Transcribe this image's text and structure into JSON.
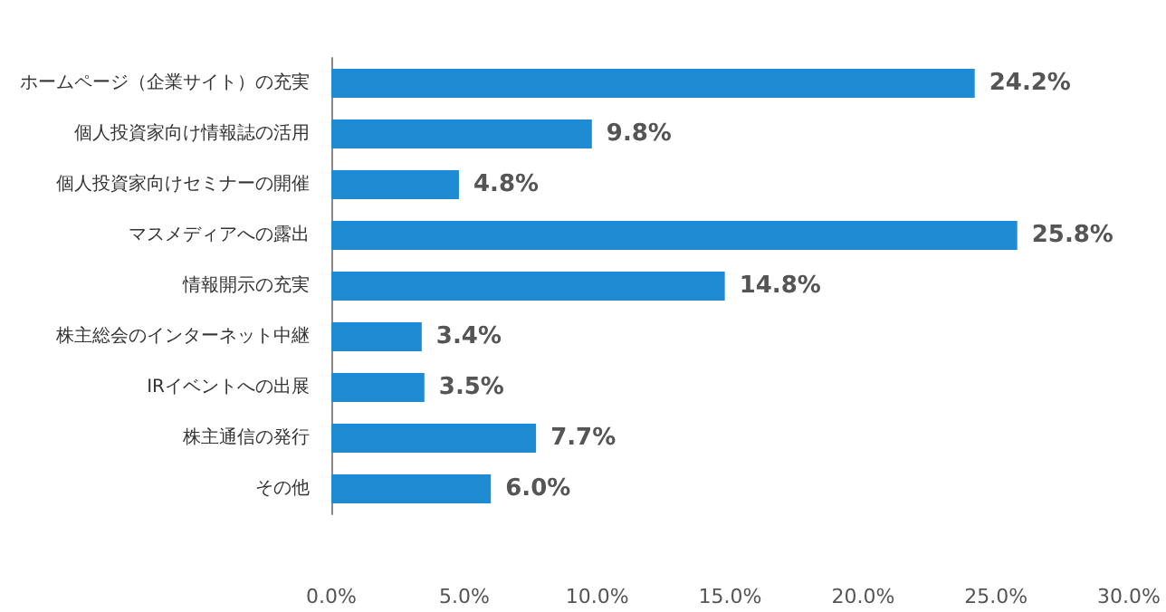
{
  "chart_data": {
    "type": "bar",
    "orientation": "horizontal",
    "categories": [
      "ホームページ（企業サイト）の充実",
      "個人投資家向け情報誌の活用",
      "個人投資家向けセミナーの開催",
      "マスメディアへの露出",
      "情報開示の充実",
      "株主総会のインターネット中継",
      "IRイベントへの出展",
      "株主通信の発行",
      "その他"
    ],
    "values": [
      24.2,
      9.8,
      4.8,
      25.8,
      14.8,
      3.4,
      3.5,
      7.7,
      6.0
    ],
    "value_labels": [
      "24.2%",
      "9.8%",
      "4.8%",
      "25.8%",
      "14.8%",
      "3.4%",
      "3.5%",
      "7.7%",
      "6.0%"
    ],
    "color": "#1e8bd2",
    "xlim": [
      0,
      30
    ],
    "xticks": [
      {
        "value": 0,
        "label": "0.0%"
      },
      {
        "value": 5,
        "label": "5.0%"
      },
      {
        "value": 10,
        "label": "10.0%"
      },
      {
        "value": 15,
        "label": "15.0%"
      },
      {
        "value": 20,
        "label": "20.0%"
      },
      {
        "value": 25,
        "label": "25.0%"
      },
      {
        "value": 30,
        "label": "30.0%"
      }
    ],
    "grid": false
  }
}
